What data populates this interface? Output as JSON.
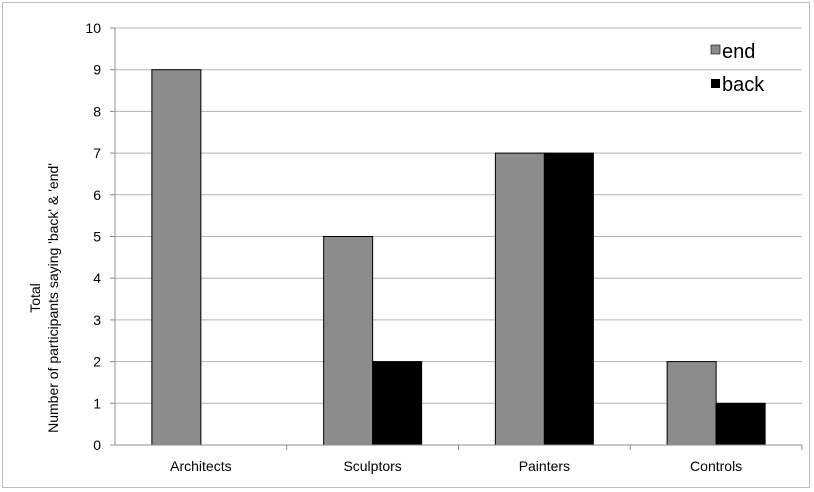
{
  "chart_data": {
    "type": "bar",
    "title": "",
    "xlabel": "",
    "ylabel_lines": [
      "Total",
      "Number of participants saying 'back' & 'end'"
    ],
    "categories": [
      "Architects",
      "Sculptors",
      "Painters",
      "Controls"
    ],
    "series": [
      {
        "name": "end",
        "values": [
          9,
          5,
          7,
          2
        ],
        "color": "#8c8c8c"
      },
      {
        "name": "back",
        "values": [
          0,
          2,
          7,
          1
        ],
        "color": "#000000"
      }
    ],
    "ylim": [
      0,
      10
    ],
    "yticks": [
      "0",
      "1",
      "2",
      "3",
      "4",
      "5",
      "6",
      "7",
      "8",
      "9",
      "10"
    ],
    "grid": true,
    "legend_position": "top-right",
    "gridline_color": "#b3b3b3"
  }
}
